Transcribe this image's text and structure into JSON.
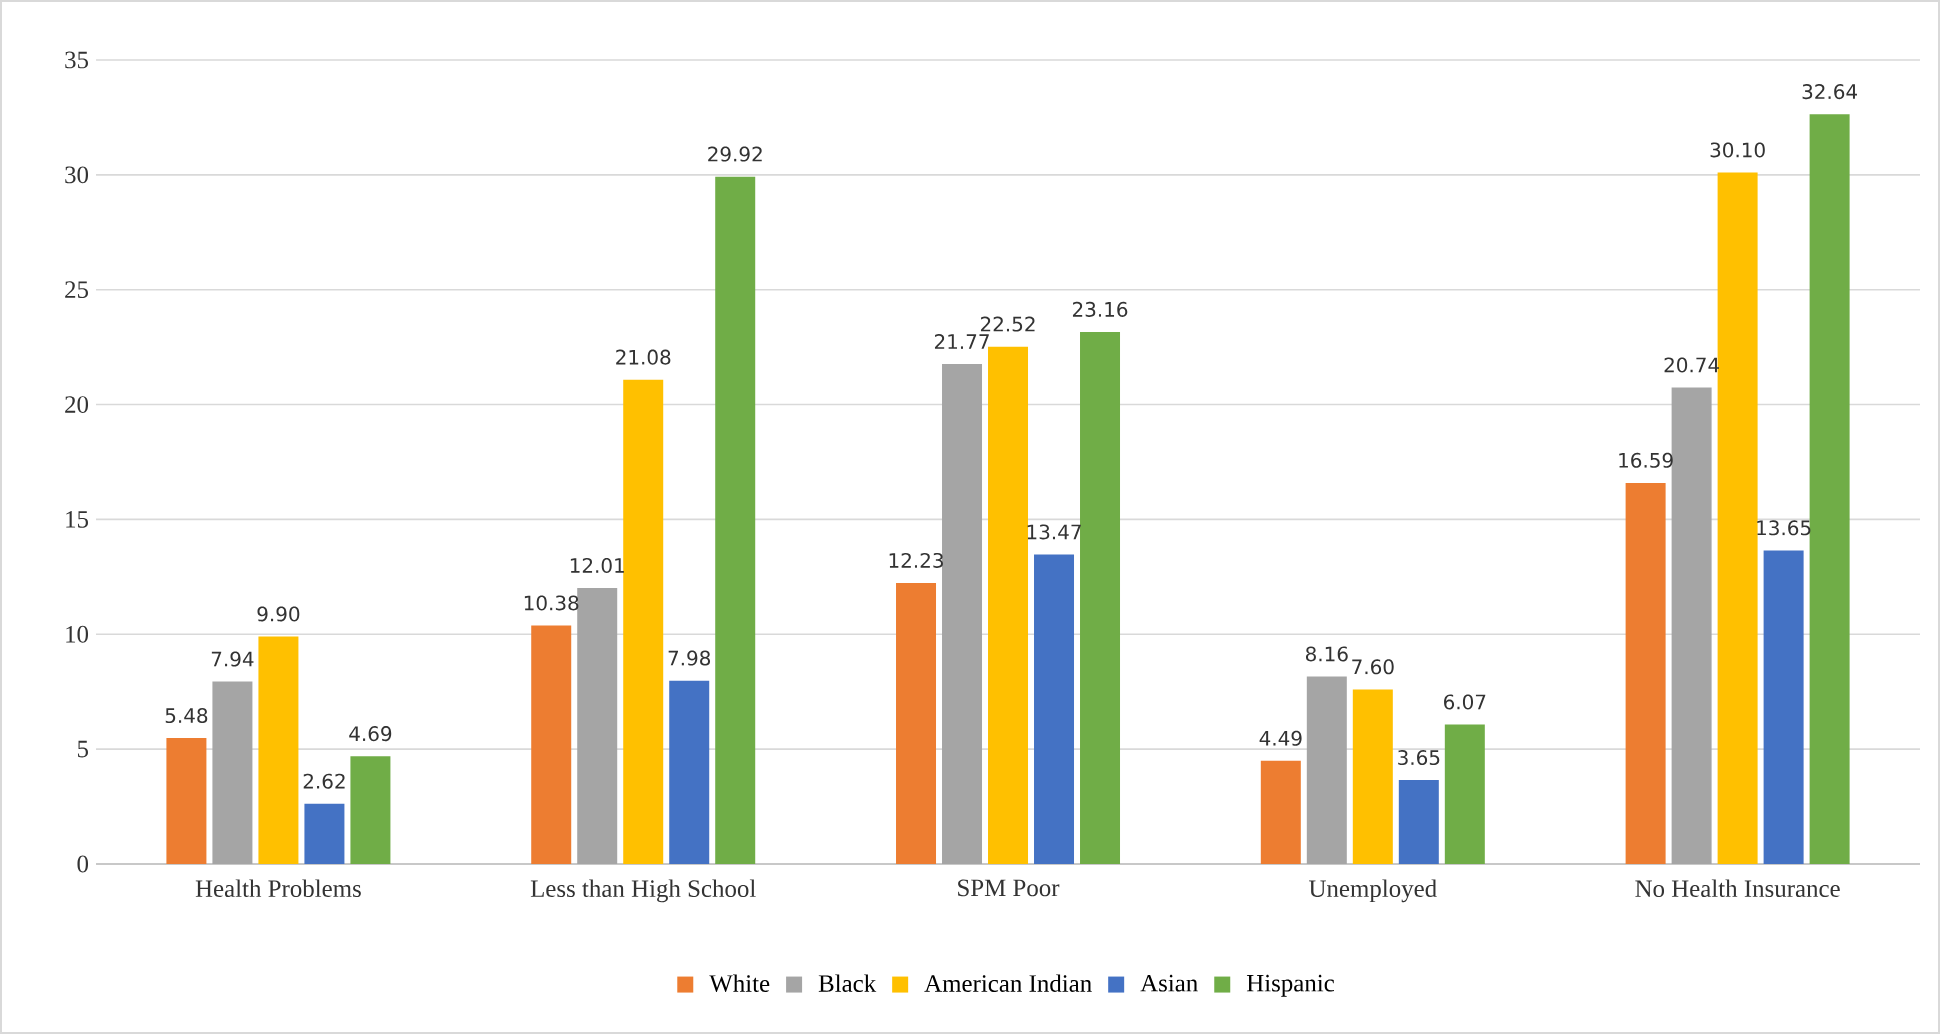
{
  "chart_data": {
    "type": "bar",
    "categories": [
      "Health Problems",
      "Less than High School",
      "SPM Poor",
      "Unemployed",
      "No Health Insurance"
    ],
    "series": [
      {
        "name": "White",
        "color": "#ed7d31",
        "values": [
          5.48,
          10.38,
          12.23,
          4.49,
          16.59
        ],
        "value_labels": [
          "5.48",
          "10.38",
          "12.23",
          "4.49",
          "16.59"
        ]
      },
      {
        "name": "Black",
        "color": "#a5a5a5",
        "values": [
          7.94,
          12.01,
          21.77,
          8.16,
          20.74
        ],
        "value_labels": [
          "7.94",
          "12.01",
          "21.77",
          "8.16",
          "20.74"
        ]
      },
      {
        "name": "American Indian",
        "color": "#ffc000",
        "values": [
          9.9,
          21.08,
          22.52,
          7.6,
          30.1
        ],
        "value_labels": [
          "9.90",
          "21.08",
          "22.52",
          "7.60",
          "30.10"
        ]
      },
      {
        "name": "Asian",
        "color": "#4472c4",
        "values": [
          2.62,
          7.98,
          13.47,
          3.65,
          13.65
        ],
        "value_labels": [
          "2.62",
          "7.98",
          "13.47",
          "3.65",
          "13.65"
        ]
      },
      {
        "name": "Hispanic",
        "color": "#70ad47",
        "values": [
          4.69,
          29.92,
          23.16,
          6.07,
          32.64
        ],
        "value_labels": [
          "4.69",
          "29.92",
          "23.16",
          "6.07",
          "32.64"
        ]
      }
    ],
    "ylim": [
      0,
      35
    ],
    "yticks": [
      0,
      5,
      10,
      15,
      20,
      25,
      30,
      35
    ],
    "grid": "y",
    "legend": "bottom"
  }
}
